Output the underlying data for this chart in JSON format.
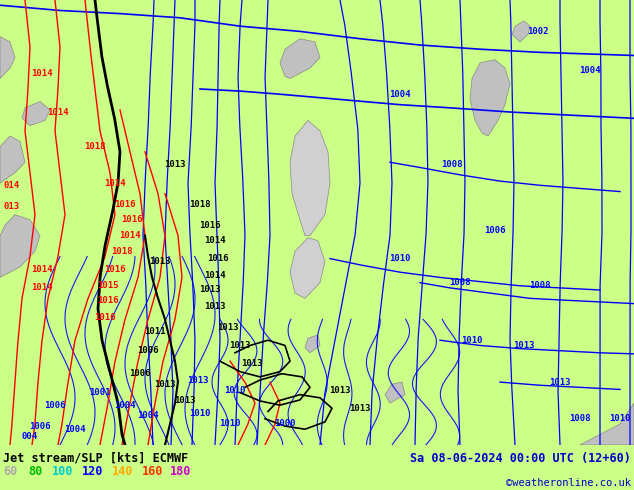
{
  "title_left": "Jet stream/SLP [kts] ECMWF",
  "title_right": "Sa 08-06-2024 00:00 UTC (12+60)",
  "copyright": "©weatheronline.co.uk",
  "legend_values": [
    "60",
    "80",
    "100",
    "120",
    "140",
    "160",
    "180"
  ],
  "legend_colors": [
    "#aaaaaa",
    "#00bb00",
    "#00cccc",
    "#0000ff",
    "#ffaa00",
    "#ff3300",
    "#cc00cc"
  ],
  "bg_color": "#ccff88",
  "bottom_bg": "#ccff88",
  "text_color_left": "#000000",
  "text_color_right": "#0000cc",
  "copyright_color": "#0000cc",
  "blue": "#0000ff",
  "red": "#ff0000",
  "black": "#000000",
  "gray_land": "#c0c0c0",
  "figsize": [
    6.34,
    4.9
  ],
  "dpi": 100
}
